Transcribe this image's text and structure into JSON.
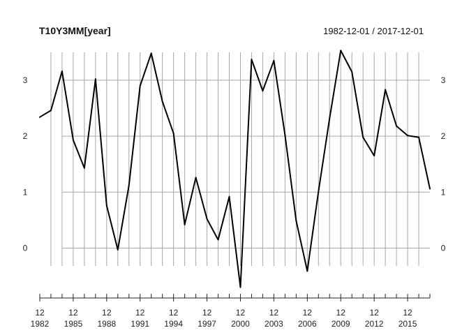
{
  "chart_data": {
    "type": "line",
    "title": "T10Y3MM[year]",
    "date_range": "1982-12-01 / 2017-12-01",
    "x": [
      "1982-12-01",
      "1983-12-01",
      "1984-12-01",
      "1985-12-01",
      "1986-12-01",
      "1987-12-01",
      "1988-12-01",
      "1989-12-01",
      "1990-12-01",
      "1991-12-01",
      "1992-12-01",
      "1993-12-01",
      "1994-12-01",
      "1995-12-01",
      "1996-12-01",
      "1997-12-01",
      "1998-12-01",
      "1999-12-01",
      "2000-12-01",
      "2001-12-01",
      "2002-12-01",
      "2003-12-01",
      "2004-12-01",
      "2005-12-01",
      "2006-12-01",
      "2007-12-01",
      "2008-12-01",
      "2009-12-01",
      "2010-12-01",
      "2011-12-01",
      "2012-12-01",
      "2013-12-01",
      "2014-12-01",
      "2015-12-01",
      "2016-12-01",
      "2017-12-01"
    ],
    "series": [
      {
        "values": [
          2.34,
          2.46,
          3.16,
          1.93,
          1.43,
          3.02,
          0.76,
          -0.03,
          1.12,
          2.9,
          3.48,
          2.62,
          2.05,
          0.42,
          1.26,
          0.52,
          0.15,
          0.92,
          -0.7,
          3.37,
          2.81,
          3.35,
          2.02,
          0.49,
          -0.41,
          1.01,
          2.32,
          3.53,
          3.15,
          1.98,
          1.65,
          2.83,
          2.18,
          2.01,
          1.98,
          1.06
        ]
      }
    ],
    "ylim": [
      -0.9,
      3.5
    ],
    "y_ticks": [
      "0",
      "1",
      "2",
      "3"
    ],
    "x_tick_labels": [
      {
        "top": "12",
        "bottom": "1982"
      },
      {
        "top": "12",
        "bottom": "1985"
      },
      {
        "top": "12",
        "bottom": "1988"
      },
      {
        "top": "12",
        "bottom": "1991"
      },
      {
        "top": "12",
        "bottom": "1994"
      },
      {
        "top": "12",
        "bottom": "1997"
      },
      {
        "top": "12",
        "bottom": "2000"
      },
      {
        "top": "12",
        "bottom": "2003"
      },
      {
        "top": "12",
        "bottom": "2006"
      },
      {
        "top": "12",
        "bottom": "2009"
      },
      {
        "top": "12",
        "bottom": "2012"
      },
      {
        "top": "12",
        "bottom": "2015"
      }
    ],
    "grid": true,
    "colors": {
      "line": "#000000",
      "grid": "#a6a6a6",
      "axis": "#222222"
    }
  }
}
